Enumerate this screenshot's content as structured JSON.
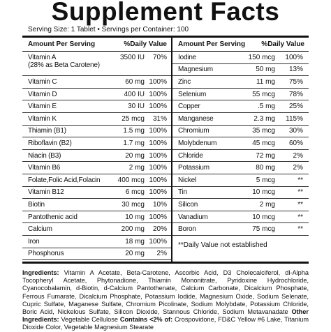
{
  "title": "Supplement Facts",
  "serving": "Serving Size: 1 Tablet • Servings per Container: 100",
  "table": {
    "left": {
      "header": {
        "amount": "Amount Per Serving",
        "dv": "%Daily Value"
      },
      "rows": [
        {
          "name": "Vitamin A",
          "sub": "(28% as Beta Carotene)",
          "amount": "3500 IU",
          "dv": "70%"
        },
        {
          "name": "Vitamin C",
          "amount": "60 mg",
          "dv": "100%"
        },
        {
          "name": "Vitamin D",
          "amount": "400 IU",
          "dv": "100%"
        },
        {
          "name": "Vitamin E",
          "amount": "30 IU",
          "dv": "100%"
        },
        {
          "name": "Vitamin K",
          "amount": "25 mcg",
          "dv": "31%"
        },
        {
          "name": "Thiamin (B1)",
          "amount": "1.5 mg",
          "dv": "100%"
        },
        {
          "name": "Riboflavin (B2)",
          "amount": "1.7 mg",
          "dv": "100%"
        },
        {
          "name": "Niacin (B3)",
          "amount": "20 mg",
          "dv": "100%"
        },
        {
          "name": "Vitamin B6",
          "amount": "2 mg",
          "dv": "100%"
        },
        {
          "name": "Folate,Folic Acid,Folacin",
          "amount": "400 mcg",
          "dv": "100%"
        },
        {
          "name": "Vitamin B12",
          "amount": "6 mcg",
          "dv": "100%"
        },
        {
          "name": "Biotin",
          "amount": "30 mcg",
          "dv": "10%"
        },
        {
          "name": "Pantothenic acid",
          "amount": "10 mg",
          "dv": "100%"
        },
        {
          "name": "Calcium",
          "amount": "200 mg",
          "dv": "20%"
        },
        {
          "name": "Iron",
          "amount": "18 mg",
          "dv": "100%"
        },
        {
          "name": "Phosphorus",
          "amount": "20 mg",
          "dv": "2%"
        }
      ]
    },
    "right": {
      "header": {
        "amount": "Amount Per Serving",
        "dv": "%Daily Value"
      },
      "rows": [
        {
          "name": "Iodine",
          "amount": "150 mcg",
          "dv": "100%"
        },
        {
          "name": "Magnesium",
          "amount": "50 mg",
          "dv": "13%"
        },
        {
          "name": "Zinc",
          "amount": "11 mg",
          "dv": "75%"
        },
        {
          "name": "Selenium",
          "amount": "55 mcg",
          "dv": "78%"
        },
        {
          "name": "Copper",
          "amount": ".5 mg",
          "dv": "25%"
        },
        {
          "name": "Manganese",
          "amount": "2.3 mg",
          "dv": "115%"
        },
        {
          "name": "Chromium",
          "amount": "35 mcg",
          "dv": "30%"
        },
        {
          "name": "Molybdenum",
          "amount": "45 mcg",
          "dv": "60%"
        },
        {
          "name": "Chloride",
          "amount": "72 mg",
          "dv": "2%"
        },
        {
          "name": "Potassium",
          "amount": "80 mg",
          "dv": "2%"
        },
        {
          "name": "Nickel",
          "amount": "5 mcg",
          "dv": "**"
        },
        {
          "name": "Tin",
          "amount": "10 mcg",
          "dv": "**"
        },
        {
          "name": "Silicon",
          "amount": "2 mg",
          "dv": "**"
        },
        {
          "name": "Vanadium",
          "amount": "10 mcg",
          "dv": "**"
        },
        {
          "name": "Boron",
          "amount": "75 mcg",
          "dv": "**"
        }
      ],
      "footnote": "**Daily Value not established"
    }
  },
  "ingredients": {
    "label": "Ingredients:",
    "text": "Vitamin A Acetate, Beta-Carotene, Ascorbic Acid, D3 Cholecalciferol, dl-Alpha Tocopheryl Acetate, Phytonadione, Thiamin Mononitrate, Pyridoxine Hydrochloride, Cyanocobalamin, d-Biotin, d-Calcium Pantothenate, Calcium Carbonate, Dicalcium Phosphate, Ferrous Fumarate, Dicalcium Phosphate, Potassium Iodide, Magnesium Oxide, Sodium Selenate, Cupric Sulfate, Maganese Sulfate, Chromium Picolinate, Sodium Molybdate, Potassium Chloride, Boric Acid, Nickelous Sulfate, Silicon Dioxide, Stannous Chloride, Sodium Metavanadate"
  },
  "other_ingredients": {
    "label": "Other Ingredients:",
    "text": "Vegetable Cellulose",
    "contains_label": "Contains <2% of:",
    "contains_text": "Crospovidone, FD&C Yellow #6 Lake, Titanium Dioxide Color, Vegetable Magnesium Stearate"
  }
}
